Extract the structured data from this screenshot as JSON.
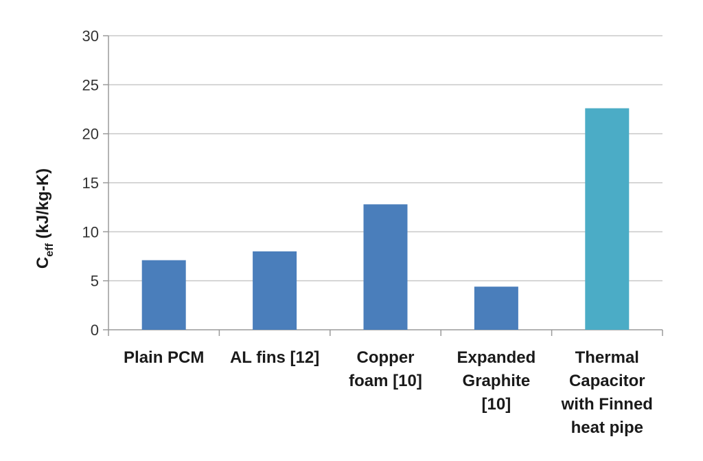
{
  "chart_data": {
    "type": "bar",
    "categories": [
      "Plain PCM",
      "AL fins [12]",
      "Copper foam [10]",
      "Expanded Graphite [10]",
      "Thermal Capacitor with Finned heat pipe"
    ],
    "category_lines": [
      [
        "Plain PCM"
      ],
      [
        "AL fins [12]"
      ],
      [
        "Copper",
        "foam [10]"
      ],
      [
        "Expanded",
        "Graphite",
        "[10]"
      ],
      [
        "Thermal",
        "Capacitor",
        "with Finned",
        "heat pipe"
      ]
    ],
    "values": [
      7.1,
      8.0,
      12.8,
      4.4,
      22.6
    ],
    "colors": [
      "#4a7ebb",
      "#4a7ebb",
      "#4a7ebb",
      "#4a7ebb",
      "#4bacc6"
    ],
    "ylabel": {
      "main": "C",
      "subscript": "eff",
      "units": " (kJ/kg-K)"
    },
    "yticks": [
      0,
      5,
      10,
      15,
      20,
      25,
      30
    ],
    "ylim": [
      0,
      30
    ],
    "grid": true
  }
}
